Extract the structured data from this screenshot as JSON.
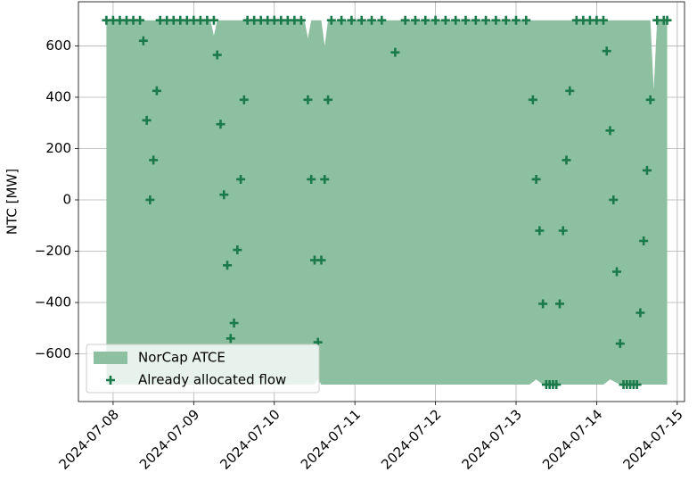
{
  "chart_data": {
    "type": "area",
    "y_label": "NTC [MW]",
    "xlim": [
      "2024-07-07 13:40",
      "2024-07-15 02:10"
    ],
    "ylim": [
      -786,
      772
    ],
    "xticks": [
      "2024-07-08",
      "2024-07-09",
      "2024-07-10",
      "2024-07-11",
      "2024-07-12",
      "2024-07-13",
      "2024-07-14",
      "2024-07-15"
    ],
    "yticks": [
      {
        "value": -600,
        "label": "−600"
      },
      {
        "value": -400,
        "label": "−400"
      },
      {
        "value": -200,
        "label": "−200"
      },
      0,
      200,
      400,
      600
    ],
    "grid": true,
    "legend": "lower left",
    "series": [
      {
        "name": "NorCap ATCE",
        "type": "area",
        "color": "#8dbfa1",
        "x": [
          "2024-07-07 22:00",
          "2024-07-09 05:00",
          "2024-07-09 06:00",
          "2024-07-09 07:00",
          "2024-07-10 09:00",
          "2024-07-10 10:00",
          "2024-07-10 11:00",
          "2024-07-10 12:00",
          "2024-07-10 13:00",
          "2024-07-10 14:00",
          "2024-07-10 15:00",
          "2024-07-10 16:00",
          "2024-07-11 12:00",
          "2024-07-13 04:00",
          "2024-07-13 06:00",
          "2024-07-13 08:00",
          "2024-07-13 13:00",
          "2024-07-14 02:00",
          "2024-07-14 04:00",
          "2024-07-14 07:00",
          "2024-07-14 16:00",
          "2024-07-14 17:00",
          "2024-07-14 18:00",
          "2024-07-14 21:00"
        ],
        "upper": [
          700,
          700,
          640,
          700,
          700,
          630,
          700,
          700,
          700,
          700,
          600,
          700,
          700,
          700,
          700,
          700,
          700,
          700,
          700,
          700,
          700,
          430,
          700,
          700
        ],
        "lower": [
          -720,
          -720,
          -720,
          -720,
          -720,
          -720,
          -720,
          -720,
          -700,
          -720,
          -720,
          -720,
          -720,
          -720,
          -700,
          -720,
          -720,
          -720,
          -700,
          -720,
          -720,
          -720,
          -720,
          -720
        ]
      },
      {
        "name": "Already allocated flow",
        "type": "scatter",
        "color": "#1b7a4a",
        "x": [
          "2024-07-07 22:00",
          "2024-07-08 00:00",
          "2024-07-08 02:00",
          "2024-07-08 04:00",
          "2024-07-08 06:00",
          "2024-07-08 08:00",
          "2024-07-08 09:00",
          "2024-07-08 10:00",
          "2024-07-08 11:00",
          "2024-07-08 12:00",
          "2024-07-08 13:00",
          "2024-07-08 14:00",
          "2024-07-08 16:00",
          "2024-07-08 18:00",
          "2024-07-08 20:00",
          "2024-07-08 22:00",
          "2024-07-09 00:00",
          "2024-07-09 02:00",
          "2024-07-09 04:00",
          "2024-07-09 06:00",
          "2024-07-09 07:00",
          "2024-07-09 08:00",
          "2024-07-09 09:00",
          "2024-07-09 10:00",
          "2024-07-09 11:00",
          "2024-07-09 12:00",
          "2024-07-09 13:00",
          "2024-07-09 14:00",
          "2024-07-09 15:00",
          "2024-07-09 16:00",
          "2024-07-09 18:00",
          "2024-07-09 20:00",
          "2024-07-09 22:00",
          "2024-07-10 00:00",
          "2024-07-10 02:00",
          "2024-07-10 04:00",
          "2024-07-10 06:00",
          "2024-07-10 08:00",
          "2024-07-10 10:00",
          "2024-07-10 11:00",
          "2024-07-10 12:00",
          "2024-07-10 13:00",
          "2024-07-10 14:00",
          "2024-07-10 15:00",
          "2024-07-10 16:00",
          "2024-07-10 17:00",
          "2024-07-10 20:00",
          "2024-07-10 23:00",
          "2024-07-11 02:00",
          "2024-07-11 05:00",
          "2024-07-11 08:00",
          "2024-07-11 12:00",
          "2024-07-11 15:00",
          "2024-07-11 18:00",
          "2024-07-11 21:00",
          "2024-07-12 00:00",
          "2024-07-12 03:00",
          "2024-07-12 06:00",
          "2024-07-12 09:00",
          "2024-07-12 12:00",
          "2024-07-12 15:00",
          "2024-07-12 18:00",
          "2024-07-12 21:00",
          "2024-07-13 00:00",
          "2024-07-13 03:00",
          "2024-07-13 05:00",
          "2024-07-13 06:00",
          "2024-07-13 07:00",
          "2024-07-13 08:00",
          "2024-07-13 09:00",
          "2024-07-13 10:00",
          "2024-07-13 11:00",
          "2024-07-13 12:00",
          "2024-07-13 13:00",
          "2024-07-13 14:00",
          "2024-07-13 15:00",
          "2024-07-13 16:00",
          "2024-07-13 18:00",
          "2024-07-13 20:00",
          "2024-07-13 22:00",
          "2024-07-14 00:00",
          "2024-07-14 02:00",
          "2024-07-14 03:00",
          "2024-07-14 04:00",
          "2024-07-14 05:00",
          "2024-07-14 06:00",
          "2024-07-14 07:00",
          "2024-07-14 08:00",
          "2024-07-14 09:00",
          "2024-07-14 10:00",
          "2024-07-14 11:00",
          "2024-07-14 12:00",
          "2024-07-14 13:00",
          "2024-07-14 14:00",
          "2024-07-14 15:00",
          "2024-07-14 16:00",
          "2024-07-14 18:00",
          "2024-07-14 20:00",
          "2024-07-14 21:00"
        ],
        "values": [
          700,
          700,
          700,
          700,
          700,
          700,
          620,
          310,
          0,
          155,
          425,
          700,
          700,
          700,
          700,
          700,
          700,
          700,
          700,
          700,
          565,
          295,
          20,
          -255,
          -540,
          -480,
          -195,
          80,
          390,
          700,
          700,
          700,
          700,
          700,
          700,
          700,
          700,
          700,
          390,
          80,
          -235,
          -555,
          -235,
          80,
          390,
          700,
          700,
          700,
          700,
          700,
          700,
          575,
          700,
          700,
          700,
          700,
          700,
          700,
          700,
          700,
          700,
          700,
          700,
          700,
          700,
          390,
          80,
          -120,
          -405,
          -720,
          -720,
          -720,
          -720,
          -405,
          -120,
          155,
          425,
          700,
          700,
          700,
          700,
          700,
          580,
          270,
          0,
          -280,
          -560,
          -720,
          -720,
          -720,
          -720,
          -720,
          -440,
          -160,
          115,
          390,
          700,
          700,
          700
        ]
      }
    ]
  }
}
